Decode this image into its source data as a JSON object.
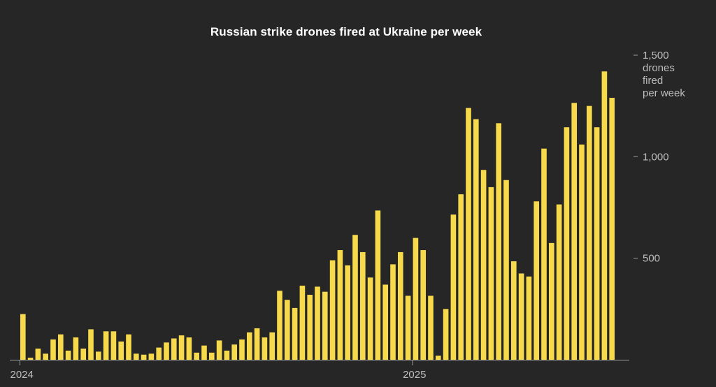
{
  "chart_data": {
    "type": "bar",
    "title": "Russian strike drones fired at Ukraine per week",
    "xlabel": "",
    "ylabel": "drones fired per week",
    "ylim": [
      0,
      1500
    ],
    "y_ticks": [
      {
        "value": 500,
        "label": "500"
      },
      {
        "value": 1000,
        "label": "1,000"
      },
      {
        "value": 1500,
        "label": "1,500"
      }
    ],
    "y_unit_lines": [
      "drones",
      "fired",
      "per week"
    ],
    "x_ticks": [
      {
        "index": 0,
        "label": "2024"
      },
      {
        "index": 52,
        "label": "2025"
      }
    ],
    "bar_color": "#f7d94c",
    "axis_color": "#9e9e9e",
    "background": "#262626",
    "grid": false,
    "values": [
      225,
      10,
      55,
      30,
      100,
      125,
      45,
      110,
      55,
      150,
      40,
      140,
      140,
      90,
      125,
      30,
      25,
      30,
      60,
      85,
      105,
      120,
      110,
      35,
      70,
      35,
      95,
      45,
      75,
      100,
      135,
      155,
      110,
      135,
      340,
      295,
      255,
      365,
      320,
      360,
      335,
      490,
      540,
      465,
      615,
      530,
      405,
      735,
      370,
      470,
      530,
      315,
      600,
      540,
      315,
      20,
      250,
      715,
      815,
      1240,
      1185,
      935,
      850,
      1165,
      885,
      485,
      425,
      410,
      780,
      1040,
      575,
      765,
      1145,
      1265,
      1060,
      1250,
      1145,
      1420,
      1290
    ]
  }
}
